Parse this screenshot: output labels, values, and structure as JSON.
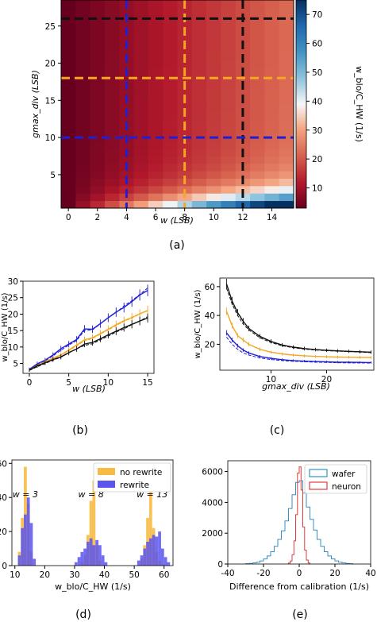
{
  "colors": {
    "orange": "#f5a623",
    "blue": "#1f1fd6",
    "black": "#111111",
    "rewrite_blue": "#5b55ee",
    "no_rewrite_orange": "#f7bb45",
    "wafer": "#3a8fc4",
    "neuron": "#e23b3b",
    "cmap_low": "#67001f",
    "cmap_mid": "#f7f7f7",
    "cmap_high": "#053061"
  },
  "chart_data": [
    {
      "id": "a",
      "type": "heatmap",
      "panel_label": "(a)",
      "xlabel": "w (LSB)",
      "ylabel": "gmax_div (LSB)",
      "colorbar_label": "w_blo/C_HW (1/s)",
      "x_ticks": [
        0,
        2,
        4,
        6,
        8,
        10,
        12,
        14
      ],
      "y_ticks": [
        5,
        10,
        15,
        20,
        25
      ],
      "colorbar_ticks": [
        10,
        20,
        30,
        40,
        50,
        60,
        70
      ],
      "w_range": [
        0,
        15
      ],
      "gmax_range": [
        1,
        28
      ],
      "color_range": [
        3,
        75
      ],
      "dashed_lines": {
        "vertical_w": [
          {
            "value": 4,
            "color": "blue"
          },
          {
            "value": 8,
            "color": "orange"
          },
          {
            "value": 12,
            "color": "black"
          }
        ],
        "horizontal_gmax": [
          {
            "value": 10,
            "color": "blue"
          },
          {
            "value": 18,
            "color": "orange"
          },
          {
            "value": 26,
            "color": "black"
          }
        ]
      }
    },
    {
      "id": "b",
      "type": "line",
      "panel_label": "(b)",
      "xlabel": "w (LSB)",
      "ylabel": "w_blo/C_HW (1/s)",
      "x_ticks": [
        0,
        5,
        10,
        15
      ],
      "y_ticks": [
        5,
        10,
        15,
        20,
        25,
        30
      ],
      "xlim": [
        -0.8,
        15.8
      ],
      "ylim": [
        2,
        30
      ],
      "x": [
        0,
        1,
        2,
        3,
        4,
        5,
        6,
        7,
        8,
        9,
        10,
        11,
        12,
        13,
        14,
        15
      ],
      "series": [
        {
          "color": "blue",
          "style": "solid",
          "values": [
            3.2,
            4.9,
            6.0,
            7.6,
            9.5,
            10.9,
            12.3,
            15.5,
            15.4,
            17.1,
            18.9,
            20.6,
            22.0,
            23.8,
            25.8,
            27.2
          ]
        },
        {
          "color": "blue",
          "style": "dashed",
          "values": [
            3.0,
            4.5,
            5.8,
            7.3,
            9.0,
            10.6,
            12.0,
            15.0,
            15.2,
            17.0,
            18.9,
            20.5,
            22.5,
            24.1,
            26.0,
            27.9
          ]
        },
        {
          "color": "orange",
          "style": "solid",
          "values": [
            3.0,
            4.4,
            5.5,
            6.6,
            7.6,
            9.1,
            10.6,
            12.2,
            12.8,
            14.1,
            15.4,
            16.8,
            18.0,
            19.0,
            20.1,
            21.1
          ]
        },
        {
          "color": "orange",
          "style": "dashed",
          "values": [
            2.9,
            4.2,
            5.3,
            6.4,
            7.5,
            8.9,
            10.3,
            11.9,
            12.6,
            13.9,
            15.2,
            16.5,
            17.8,
            18.8,
            20.0,
            21.0
          ]
        },
        {
          "color": "black",
          "style": "solid",
          "values": [
            3.0,
            4.3,
            5.2,
            6.2,
            7.0,
            8.3,
            9.4,
            10.9,
            11.4,
            12.5,
            13.7,
            14.8,
            15.9,
            16.9,
            17.9,
            18.8
          ]
        },
        {
          "color": "black",
          "style": "dashed",
          "values": [
            2.9,
            4.0,
            5.0,
            6.0,
            6.9,
            8.2,
            9.5,
            10.5,
            11.0,
            12.2,
            13.3,
            14.6,
            15.5,
            16.8,
            17.9,
            19.2
          ]
        }
      ]
    },
    {
      "id": "c",
      "type": "line",
      "panel_label": "(c)",
      "xlabel": "gmax_div (LSB)",
      "ylabel": "w_blo/C_HW (1/s)",
      "x_ticks": [
        10,
        20
      ],
      "y_ticks": [
        20,
        40,
        60
      ],
      "xlim": [
        0.8,
        28.5
      ],
      "ylim": [
        2,
        66
      ],
      "x": [
        2,
        3,
        4,
        5,
        6,
        8,
        10,
        12,
        14,
        16,
        18,
        20,
        22,
        24,
        26,
        28
      ],
      "series": [
        {
          "color": "black",
          "style": "solid",
          "values": [
            62,
            50,
            42,
            36,
            31,
            25.5,
            22,
            19.5,
            18,
            17,
            16.3,
            15.8,
            15.4,
            15.1,
            14.8,
            14.5
          ]
        },
        {
          "color": "black",
          "style": "dashed",
          "values": [
            59,
            48,
            40,
            34,
            30,
            24.5,
            21.2,
            19,
            17.6,
            16.6,
            16,
            15.5,
            15.2,
            14.9,
            14.6,
            14.2
          ]
        },
        {
          "color": "orange",
          "style": "solid",
          "values": [
            43,
            33,
            26,
            23,
            20,
            16.5,
            14.5,
            13.3,
            12.5,
            12,
            11.6,
            11.3,
            11.1,
            11,
            10.9,
            10.8
          ]
        },
        {
          "color": "blue",
          "style": "solid",
          "values": [
            28,
            23,
            19,
            16,
            14,
            11.5,
            10.2,
            9.3,
            8.7,
            8.3,
            8,
            7.8,
            7.6,
            7.5,
            7.4,
            7.3
          ]
        },
        {
          "color": "blue",
          "style": "dashed",
          "values": [
            25,
            20,
            16.5,
            14,
            12.5,
            10.5,
            9.4,
            8.7,
            8.2,
            7.9,
            7.6,
            7.4,
            7.2,
            7.1,
            7,
            6.9
          ]
        }
      ]
    },
    {
      "id": "d",
      "type": "bar",
      "panel_label": "(d)",
      "xlabel": "w_blo/C_HW (1/s)",
      "x_ticks": [
        10,
        20,
        30,
        40,
        50,
        60
      ],
      "y_ticks": [
        0,
        20,
        40,
        60
      ],
      "xlim": [
        9,
        63
      ],
      "ylim": [
        0,
        62
      ],
      "annotations": [
        "w = 3",
        "w = 8",
        "w = 13"
      ],
      "annotation_x": [
        13.5,
        35.5,
        56
      ],
      "bin_width": 1,
      "series": [
        {
          "name": "no rewrite",
          "color": "no_rewrite_orange",
          "bin_starts": [
            11,
            12,
            13,
            14,
            15,
            32,
            33,
            34,
            35,
            36,
            37,
            38,
            52,
            53,
            54,
            55,
            56,
            57,
            58,
            59
          ],
          "values": [
            8,
            28,
            58,
            36,
            8,
            2,
            6,
            18,
            38,
            50,
            12,
            3,
            4,
            12,
            28,
            54,
            22,
            8,
            3,
            1
          ]
        },
        {
          "name": "rewrite",
          "color": "rewrite_blue",
          "bin_starts": [
            11,
            12,
            13,
            14,
            15,
            16,
            30,
            31,
            32,
            33,
            34,
            35,
            36,
            37,
            38,
            39,
            40,
            51,
            52,
            53,
            54,
            55,
            56,
            57,
            58,
            59,
            60,
            61
          ],
          "values": [
            6,
            22,
            30,
            40,
            25,
            4,
            2,
            5,
            8,
            10,
            14,
            16,
            12,
            15,
            12,
            6,
            2,
            3,
            6,
            10,
            14,
            16,
            18,
            17,
            20,
            10,
            5,
            2
          ]
        }
      ],
      "legend": [
        "no rewrite",
        "rewrite"
      ]
    },
    {
      "id": "e",
      "type": "bar",
      "panel_label": "(e)",
      "xlabel": "Difference from calibration (1/s)",
      "x_ticks": [
        -40,
        -20,
        0,
        20,
        40
      ],
      "y_ticks": [
        0,
        2000,
        4000,
        6000
      ],
      "xlim": [
        -40,
        40
      ],
      "ylim": [
        0,
        6700
      ],
      "legend": [
        "wafer",
        "neuron"
      ],
      "series": [
        {
          "name": "wafer",
          "color": "wafer",
          "bin_width": 2,
          "bin_starts": [
            -30,
            -28,
            -26,
            -24,
            -22,
            -20,
            -18,
            -16,
            -14,
            -12,
            -10,
            -8,
            -6,
            -4,
            -2,
            0,
            2,
            4,
            6,
            8,
            10,
            12,
            14,
            16,
            18,
            20,
            22,
            24,
            26,
            28
          ],
          "values": [
            20,
            40,
            70,
            120,
            200,
            330,
            520,
            800,
            1150,
            1600,
            2150,
            2800,
            3600,
            4500,
            5300,
            5400,
            4600,
            3700,
            2900,
            2200,
            1600,
            1150,
            800,
            520,
            330,
            200,
            120,
            70,
            40,
            20
          ]
        },
        {
          "name": "neuron",
          "color": "neuron",
          "bin_width": 1,
          "bin_starts": [
            -6,
            -5,
            -4,
            -3,
            -2,
            -1,
            0,
            1,
            2,
            3,
            4,
            5
          ],
          "values": [
            60,
            200,
            600,
            1500,
            3200,
            5900,
            6300,
            4800,
            2400,
            900,
            260,
            60
          ]
        }
      ]
    }
  ]
}
